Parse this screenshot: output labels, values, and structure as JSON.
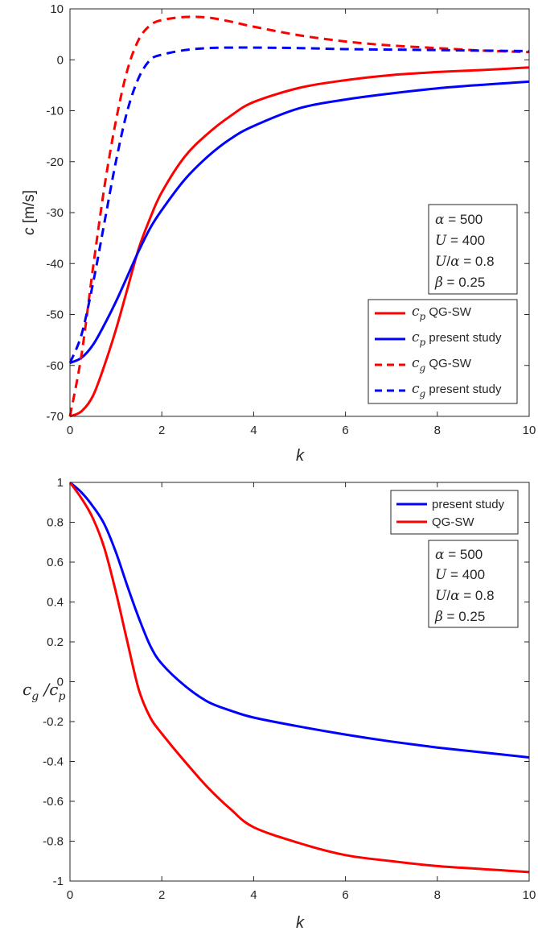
{
  "chart_data": [
    {
      "type": "line",
      "xlabel": "k",
      "ylabel": "c [m/s]",
      "xlim": [
        0,
        10
      ],
      "ylim": [
        -70,
        10
      ],
      "xticks": [
        0,
        2,
        4,
        6,
        8,
        10
      ],
      "yticks": [
        -70,
        -60,
        -50,
        -40,
        -30,
        -20,
        -10,
        0,
        10
      ],
      "grid": false,
      "legend_position": "bottom-right",
      "annotation": [
        "α = 500",
        "U = 400",
        "U/α = 0.8",
        "β = 0.25"
      ],
      "series": [
        {
          "name": "c_p QG-SW",
          "color": "#ff0000",
          "style": "solid",
          "x": [
            0,
            0.25,
            0.5,
            0.75,
            1,
            1.25,
            1.5,
            1.75,
            2,
            2.5,
            3,
            3.5,
            4,
            5,
            6,
            7,
            8,
            9,
            10
          ],
          "y": [
            -70,
            -69,
            -66,
            -60,
            -53,
            -45,
            -37,
            -31,
            -26,
            -19,
            -14.5,
            -11,
            -8.3,
            -5.5,
            -4,
            -3,
            -2.4,
            -2,
            -1.5
          ]
        },
        {
          "name": "c_p present study",
          "color": "#0000ff",
          "style": "solid",
          "x": [
            0,
            0.25,
            0.5,
            0.75,
            1,
            1.25,
            1.5,
            1.75,
            2,
            2.5,
            3,
            3.5,
            4,
            5,
            6,
            7,
            8,
            9,
            10
          ],
          "y": [
            -59.5,
            -58.5,
            -56,
            -52,
            -47.5,
            -42.5,
            -37.5,
            -33,
            -29.5,
            -23.5,
            -19,
            -15.5,
            -13,
            -9.5,
            -7.8,
            -6.6,
            -5.6,
            -4.9,
            -4.3
          ]
        },
        {
          "name": "c_g QG-SW",
          "color": "#ff0000",
          "style": "dashed",
          "x": [
            0,
            0.25,
            0.5,
            0.75,
            1,
            1.25,
            1.5,
            1.75,
            2,
            2.5,
            3,
            3.5,
            4,
            5,
            6,
            7,
            8,
            9,
            10
          ],
          "y": [
            -70,
            -58,
            -41,
            -25,
            -12,
            -2,
            4,
            6.8,
            7.8,
            8.4,
            8.3,
            7.5,
            6.5,
            4.8,
            3.6,
            2.8,
            2.3,
            1.8,
            1.5
          ]
        },
        {
          "name": "c_g present study",
          "color": "#0000ff",
          "style": "dashed",
          "x": [
            0,
            0.25,
            0.5,
            0.75,
            1,
            1.25,
            1.5,
            1.75,
            2,
            2.5,
            3,
            3.5,
            4,
            5,
            6,
            7,
            8,
            9,
            10
          ],
          "y": [
            -59.5,
            -54,
            -44,
            -32,
            -20,
            -10,
            -3.5,
            0,
            1,
            1.9,
            2.3,
            2.4,
            2.4,
            2.3,
            2.1,
            2.0,
            1.9,
            1.8,
            1.7
          ]
        }
      ]
    },
    {
      "type": "line",
      "xlabel": "k",
      "ylabel": "c_g / c_p",
      "xlim": [
        0,
        10
      ],
      "ylim": [
        -1,
        1
      ],
      "xticks": [
        0,
        2,
        4,
        6,
        8,
        10
      ],
      "yticks": [
        -1,
        -0.8,
        -0.6,
        -0.4,
        -0.2,
        0,
        0.2,
        0.4,
        0.6,
        0.8,
        1
      ],
      "grid": false,
      "legend_position": "top-right",
      "annotation": [
        "α = 500",
        "U = 400",
        "U/α = 0.8",
        "β = 0.25"
      ],
      "series": [
        {
          "name": "present study",
          "color": "#0000ff",
          "style": "solid",
          "x": [
            0,
            0.25,
            0.5,
            0.75,
            1,
            1.25,
            1.5,
            1.75,
            2,
            2.5,
            3,
            3.5,
            4,
            5,
            6,
            7,
            8,
            9,
            10
          ],
          "y": [
            1,
            0.95,
            0.88,
            0.79,
            0.65,
            0.48,
            0.32,
            0.18,
            0.09,
            -0.02,
            -0.1,
            -0.145,
            -0.18,
            -0.225,
            -0.265,
            -0.3,
            -0.33,
            -0.355,
            -0.38
          ]
        },
        {
          "name": "QG-SW",
          "color": "#ff0000",
          "style": "solid",
          "x": [
            0,
            0.25,
            0.5,
            0.75,
            1,
            1.25,
            1.5,
            1.75,
            2,
            2.5,
            3,
            3.5,
            4,
            5,
            6,
            7,
            8,
            9,
            10
          ],
          "y": [
            1,
            0.92,
            0.82,
            0.67,
            0.45,
            0.2,
            -0.04,
            -0.18,
            -0.26,
            -0.4,
            -0.53,
            -0.64,
            -0.73,
            -0.81,
            -0.87,
            -0.9,
            -0.925,
            -0.94,
            -0.955
          ]
        }
      ]
    }
  ]
}
